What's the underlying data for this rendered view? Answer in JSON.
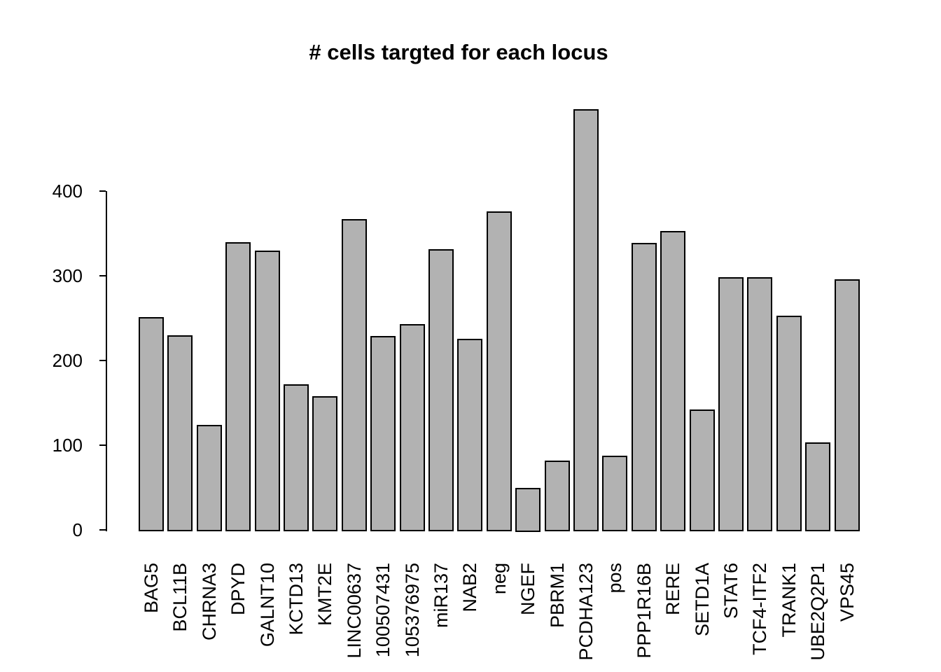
{
  "chart_data": {
    "type": "bar",
    "title": "# cells targted for each locus",
    "xlabel": "",
    "ylabel": "",
    "categories": [
      "BAG5",
      "BCL11B",
      "CHRNA3",
      "DPYD",
      "GALNT10",
      "KCTD13",
      "KMT2E",
      "LINC00637",
      "100507431",
      "105376975",
      "miR137",
      "NAB2",
      "neg",
      "NGEF",
      "PBRM1",
      "PCDHA123",
      "pos",
      "PPP1R16B",
      "RERE",
      "SETD1A",
      "STAT6",
      "TCF4-ITF2",
      "TRANK1",
      "UBE2Q2P1",
      "VPS45"
    ],
    "values": [
      251,
      230,
      124,
      340,
      330,
      172,
      158,
      367,
      229,
      243,
      331,
      226,
      376,
      50,
      82,
      497,
      88,
      339,
      353,
      142,
      298,
      298,
      253,
      103,
      296
    ],
    "yticks": [
      0,
      100,
      200,
      300,
      400
    ],
    "ylim": [
      0,
      400
    ],
    "grid": "off",
    "legend": "none",
    "bar_fill_color": "#b2b2b2",
    "bar_border_color": "#000000",
    "axis_color": "#000000",
    "background_color": "#ffffff"
  }
}
